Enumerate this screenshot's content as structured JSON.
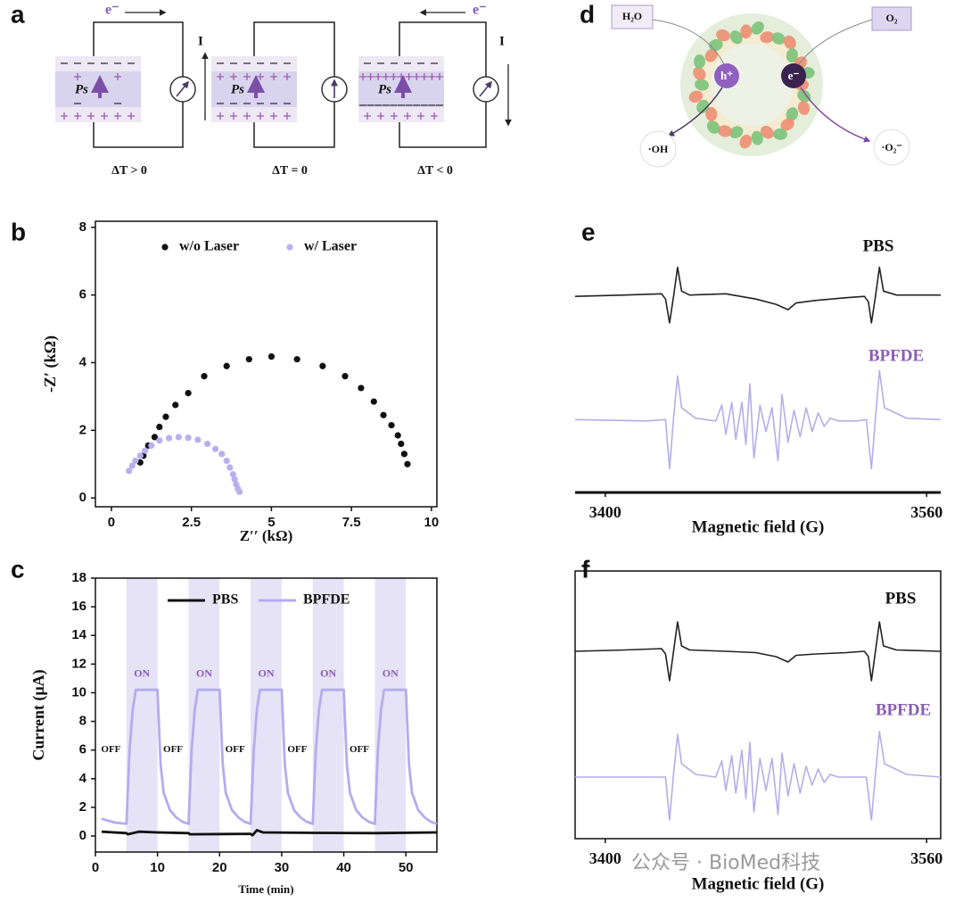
{
  "panel_labels": [
    "a",
    "b",
    "c",
    "d",
    "e",
    "f"
  ],
  "diagram_a": {
    "electron": "e⁻",
    "current": "I",
    "polarization": "Ps",
    "conditions": [
      "ΔT > 0",
      "ΔT = 0",
      "ΔT < 0"
    ]
  },
  "diagram_d": {
    "water": "H₂O",
    "oxygen": "O₂",
    "hole": "h⁺",
    "electron": "e⁻",
    "hydroxyl": "·OH",
    "superoxide": "·O₂⁻"
  },
  "watermark": "公众号 · BioMed科技",
  "chart_data": [
    {
      "type": "scatter",
      "xlabel": "Z′′ (kΩ)",
      "ylabel": "-Z′ (kΩ)",
      "xlim": [
        -0.5,
        10.17
      ],
      "xticks": [
        0,
        2.5,
        5,
        7.5,
        10
      ],
      "ylim": [
        -0.26,
        8.18
      ],
      "yticks": [
        0,
        2,
        4,
        6,
        8
      ],
      "legend": "upper center",
      "series": [
        {
          "name": "w/o Laser",
          "color": "#111111",
          "x": [
            0.9,
            1.0,
            1.15,
            1.35,
            1.5,
            1.7,
            2.0,
            2.4,
            2.9,
            3.6,
            4.3,
            5.0,
            5.8,
            6.6,
            7.3,
            7.8,
            8.2,
            8.5,
            8.75,
            8.95,
            9.05,
            9.15,
            9.25
          ],
          "values": [
            1.05,
            1.25,
            1.55,
            1.8,
            2.1,
            2.4,
            2.75,
            3.1,
            3.6,
            3.9,
            4.1,
            4.18,
            4.1,
            3.9,
            3.6,
            3.25,
            2.85,
            2.45,
            2.15,
            1.85,
            1.6,
            1.3,
            1.0
          ]
        },
        {
          "name": "w/ Laser",
          "color": "#b8b0ee",
          "x": [
            0.55,
            0.65,
            0.75,
            0.9,
            1.05,
            1.25,
            1.5,
            1.8,
            2.1,
            2.4,
            2.7,
            3.0,
            3.25,
            3.45,
            3.6,
            3.7,
            3.8,
            3.85,
            3.9,
            3.95,
            4.0
          ],
          "values": [
            0.8,
            0.95,
            1.1,
            1.25,
            1.4,
            1.55,
            1.7,
            1.77,
            1.8,
            1.78,
            1.72,
            1.6,
            1.45,
            1.3,
            1.1,
            0.9,
            0.7,
            0.55,
            0.4,
            0.28,
            0.18
          ]
        }
      ]
    },
    {
      "type": "line",
      "xlabel": "Time (min)",
      "ylabel": "Current  (μA)",
      "xlim": [
        0,
        55
      ],
      "xticks": [
        0,
        10,
        20,
        30,
        40,
        50
      ],
      "ylim": [
        -1.12,
        18
      ],
      "yticks": [
        0,
        2,
        4,
        6,
        8,
        10,
        12,
        14,
        16,
        18
      ],
      "legend": "upper center",
      "on_intervals": [
        [
          5,
          10
        ],
        [
          15,
          20
        ],
        [
          25,
          30
        ],
        [
          35,
          40
        ],
        [
          45,
          50
        ]
      ],
      "band_color": "#e6e3f7",
      "on_label": "ON",
      "off_label": "OFF",
      "series": [
        {
          "name": "PBS",
          "color": "#111111",
          "x": [
            1,
            5,
            5.2,
            7,
            10,
            15,
            15.2,
            25,
            25.3,
            26,
            27,
            35,
            45,
            55
          ],
          "values": [
            0.3,
            0.2,
            0.12,
            0.3,
            0.25,
            0.2,
            0.12,
            0.15,
            0.05,
            0.4,
            0.25,
            0.22,
            0.2,
            0.25
          ]
        },
        {
          "name": "BPFDE",
          "color": "#b4acee",
          "x": [
            1,
            3,
            5,
            5.5,
            6,
            6.5,
            10,
            10.5,
            11,
            12,
            13,
            14,
            15,
            15.5,
            16,
            16.5,
            20,
            20.5,
            21,
            22,
            23,
            24,
            25,
            25.5,
            26,
            26.5,
            30,
            30.5,
            31,
            32,
            33,
            34,
            35,
            35.5,
            36,
            36.5,
            40,
            40.5,
            41,
            42,
            43,
            44,
            45,
            45.5,
            46,
            46.5,
            50,
            50.5,
            51,
            52,
            53,
            54,
            55
          ],
          "values": [
            1.2,
            0.95,
            0.85,
            6,
            8.8,
            10.2,
            10.2,
            5,
            3,
            1.8,
            1.3,
            1.0,
            0.85,
            6,
            8.8,
            10.2,
            10.2,
            5,
            3,
            1.8,
            1.3,
            1.0,
            0.85,
            6,
            8.8,
            10.2,
            10.2,
            5,
            3,
            1.8,
            1.3,
            1.0,
            0.85,
            6,
            8.8,
            10.2,
            10.2,
            5,
            3,
            1.8,
            1.3,
            1.0,
            0.85,
            6,
            8.8,
            10.2,
            10.2,
            5,
            3,
            1.8,
            1.3,
            1.0,
            0.85
          ]
        }
      ]
    },
    {
      "type": "line",
      "xlabel": "Magnetic field (G)",
      "xlim": [
        3385,
        3567
      ],
      "xticks": [
        3400,
        3560
      ],
      "ylim": [
        0,
        10
      ],
      "series": [
        {
          "name": "PBS",
          "color": "#222222",
          "x": [
            3385,
            3410,
            3428,
            3430,
            3432,
            3434,
            3436,
            3438,
            3442,
            3460,
            3475,
            3485,
            3491,
            3495,
            3505,
            3520,
            3529,
            3531,
            3532.5,
            3534.5,
            3536.5,
            3538.5,
            3545,
            3567
          ],
          "values": [
            7.4,
            7.45,
            7.5,
            7.3,
            6.4,
            7.4,
            8.5,
            7.6,
            7.45,
            7.5,
            7.3,
            7.1,
            6.9,
            7.15,
            7.25,
            7.35,
            7.4,
            7.2,
            6.4,
            7.4,
            8.5,
            7.6,
            7.45,
            7.45
          ]
        },
        {
          "name": "BPFDE",
          "color": "#b3aee8",
          "x": [
            3385,
            3420,
            3430,
            3432,
            3434,
            3436,
            3438,
            3445,
            3455,
            3458,
            3460,
            3463,
            3465,
            3468,
            3470,
            3472,
            3474,
            3477,
            3480,
            3483,
            3486,
            3488,
            3491,
            3494,
            3497,
            3500,
            3503,
            3506,
            3509,
            3512,
            3516,
            3525,
            3530,
            3532.5,
            3534.5,
            3536.5,
            3539,
            3550,
            3567
          ],
          "values": [
            2.75,
            2.7,
            2.75,
            0.9,
            2.8,
            4.4,
            3.2,
            2.8,
            2.7,
            3.3,
            2.2,
            3.4,
            2.0,
            3.4,
            1.8,
            4.1,
            1.3,
            3.3,
            2.3,
            3.2,
            1.2,
            3.7,
            1.9,
            3.1,
            2.1,
            3.2,
            2.3,
            3.0,
            2.5,
            2.8,
            2.7,
            2.7,
            2.75,
            0.9,
            2.8,
            4.6,
            3.2,
            2.8,
            2.75
          ]
        }
      ]
    },
    {
      "type": "line",
      "xlabel": "Magnetic field (G)",
      "xlim": [
        3385,
        3567
      ],
      "xticks": [
        3400,
        3560
      ],
      "ylim": [
        0,
        10
      ],
      "series": [
        {
          "name": "PBS",
          "color": "#222222",
          "x": [
            3385,
            3410,
            3428,
            3430,
            3432,
            3434,
            3436,
            3438,
            3442,
            3460,
            3475,
            3485,
            3491,
            3495,
            3505,
            3520,
            3529,
            3531,
            3532.5,
            3534.5,
            3536.5,
            3538.5,
            3545,
            3567
          ],
          "values": [
            7.0,
            7.05,
            7.1,
            6.9,
            5.9,
            7.0,
            8.1,
            7.2,
            7.05,
            7.0,
            6.95,
            6.8,
            6.6,
            6.85,
            6.9,
            6.95,
            7.0,
            6.8,
            5.9,
            7.0,
            8.1,
            7.2,
            7.05,
            7.0
          ]
        },
        {
          "name": "BPFDE",
          "color": "#b3aee8",
          "x": [
            3385,
            3420,
            3430,
            3432,
            3434,
            3436,
            3438,
            3445,
            3455,
            3458,
            3460,
            3463,
            3465,
            3468,
            3470,
            3472,
            3474,
            3477,
            3480,
            3483,
            3486,
            3488,
            3491,
            3494,
            3497,
            3500,
            3503,
            3506,
            3509,
            3512,
            3516,
            3525,
            3530,
            3532.5,
            3534.5,
            3536.5,
            3539,
            3550,
            3567
          ],
          "values": [
            2.3,
            2.3,
            2.3,
            0.7,
            2.4,
            3.9,
            2.8,
            2.4,
            2.3,
            2.9,
            1.8,
            3.1,
            1.7,
            3.3,
            1.5,
            3.6,
            1.0,
            3.0,
            1.8,
            3.0,
            0.9,
            3.2,
            1.6,
            2.8,
            1.7,
            2.7,
            2.0,
            2.6,
            2.1,
            2.4,
            2.3,
            2.3,
            2.3,
            0.7,
            2.4,
            4.0,
            2.8,
            2.4,
            2.3
          ]
        }
      ]
    }
  ]
}
